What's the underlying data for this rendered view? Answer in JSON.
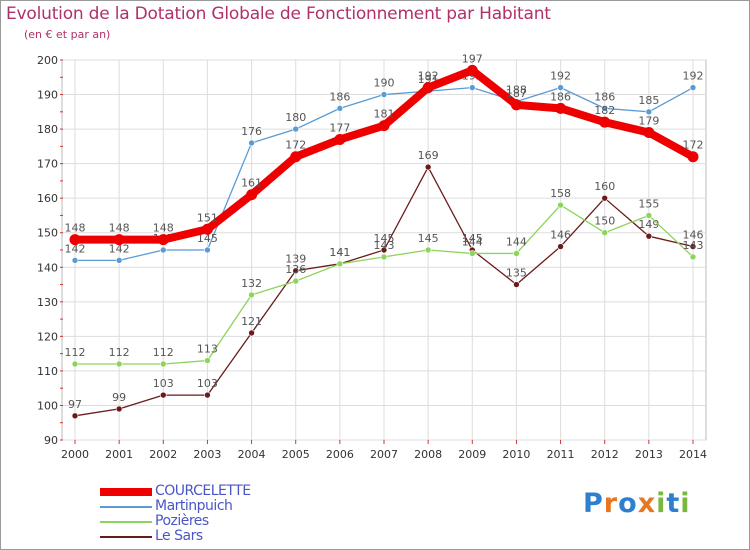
{
  "chart_data": {
    "type": "line",
    "title": "Evolution de la Dotation Globale de Fonctionnement par Habitant",
    "subtitle": "(en € et par an)",
    "x": [
      "2000",
      "2001",
      "2002",
      "2003",
      "2004",
      "2005",
      "2006",
      "2007",
      "2008",
      "2009",
      "2010",
      "2011",
      "2012",
      "2013",
      "2014"
    ],
    "ylim": [
      90,
      200
    ],
    "yticks": [
      90,
      100,
      110,
      120,
      130,
      140,
      150,
      160,
      170,
      180,
      190,
      200
    ],
    "grid": true,
    "legend_position": "bottom-left",
    "series": [
      {
        "name": "Le Sars",
        "color": "#6b1a1a",
        "values": [
          97,
          99,
          103,
          103,
          121,
          139,
          141,
          145,
          169,
          145,
          135,
          146,
          160,
          149,
          146
        ]
      },
      {
        "name": "Pozières",
        "color": "#8cd45a",
        "values": [
          112,
          112,
          112,
          113,
          132,
          136,
          141,
          143,
          145,
          144,
          144,
          158,
          150,
          155,
          143
        ]
      },
      {
        "name": "Martinpuich",
        "color": "#5a9bd4",
        "values": [
          142,
          142,
          145,
          145,
          176,
          180,
          186,
          190,
          191,
          192,
          188,
          192,
          186,
          185,
          192
        ]
      },
      {
        "name": "COURCELETTE",
        "color": "#ee0000",
        "values": [
          148,
          148,
          148,
          151,
          161,
          172,
          177,
          181,
          192,
          197,
          187,
          186,
          182,
          179,
          172
        ]
      }
    ]
  },
  "legend": {
    "items": [
      {
        "label": "COURCELETTE",
        "color": "#ee0000",
        "thick": true
      },
      {
        "label": "Martinpuich",
        "color": "#5a9bd4",
        "thick": false
      },
      {
        "label": "Pozières",
        "color": "#8cd45a",
        "thick": false
      },
      {
        "label": "Le Sars",
        "color": "#6b1a1a",
        "thick": false
      }
    ]
  },
  "logo": {
    "text": "Proxiti",
    "colors": [
      "#2f7fd0",
      "#e87722",
      "#2f7fd0",
      "#e87722",
      "#7ab640",
      "#2f7fd0",
      "#7ab640"
    ]
  }
}
